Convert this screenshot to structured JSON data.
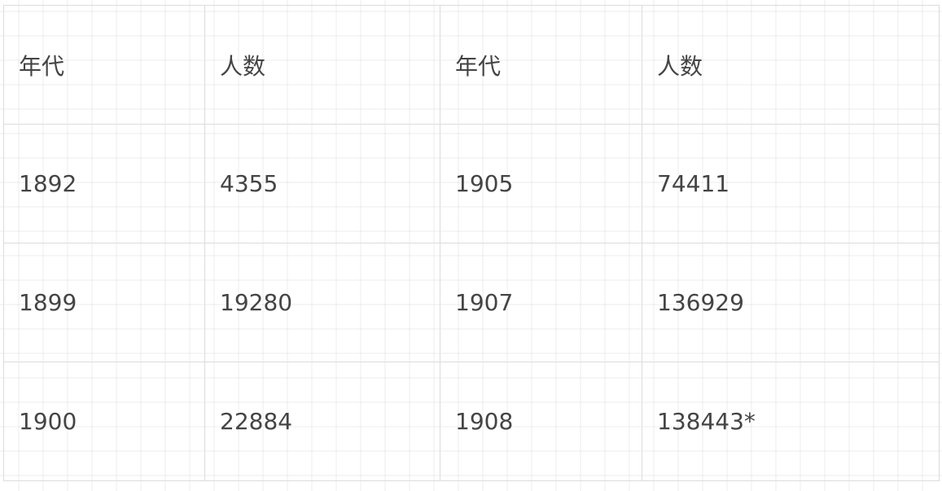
{
  "table": {
    "headers": [
      "年代",
      "人数",
      "年代",
      "人数"
    ],
    "rows": [
      [
        "1892",
        "4355",
        "1905",
        "74411"
      ],
      [
        "1899",
        "19280",
        "1907",
        "136929"
      ],
      [
        "1900",
        "22884",
        "1908",
        "138443*"
      ]
    ]
  }
}
